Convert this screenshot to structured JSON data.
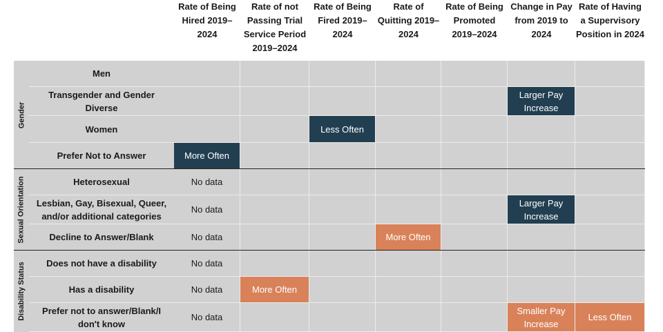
{
  "chart_data": {
    "type": "table",
    "columns": [
      "Rate of Being Hired 2019–2024",
      "Rate of not Passing Trial Service Period 2019–2024",
      "Rate of Being Fired 2019–2024",
      "Rate of Quitting 2019–2024",
      "Rate of Being Promoted 2019–2024",
      "Change in Pay from 2019 to 2024",
      "Rate of Having a Supervisory Position in 2024"
    ],
    "groups": [
      {
        "name": "Gender",
        "rows": [
          {
            "label": "Men",
            "cells": [
              "",
              "",
              "",
              "",
              "",
              "",
              ""
            ]
          },
          {
            "label": "Transgender and Gender Diverse",
            "cells": [
              "",
              "",
              "",
              "",
              "",
              "Larger Pay Increase",
              ""
            ]
          },
          {
            "label": "Women",
            "cells": [
              "",
              "",
              "Less Often",
              "",
              "",
              "",
              ""
            ]
          },
          {
            "label": "Prefer Not to Answer",
            "cells": [
              "More Often",
              "",
              "",
              "",
              "",
              "",
              ""
            ]
          }
        ]
      },
      {
        "name": "Sexual Orientation",
        "rows": [
          {
            "label": "Heterosexual",
            "cells": [
              "No data",
              "",
              "",
              "",
              "",
              "",
              ""
            ]
          },
          {
            "label": "Lesbian, Gay, Bisexual, Queer, and/or additional categories",
            "cells": [
              "No data",
              "",
              "",
              "",
              "",
              "Larger Pay Increase",
              ""
            ]
          },
          {
            "label": "Decline to Answer/Blank",
            "cells": [
              "No data",
              "",
              "",
              "More Often",
              "",
              "",
              ""
            ]
          }
        ]
      },
      {
        "name": "Disability Status",
        "rows": [
          {
            "label": "Does not have a disability",
            "cells": [
              "No data",
              "",
              "",
              "",
              "",
              "",
              ""
            ]
          },
          {
            "label": "Has a disability",
            "cells": [
              "No data",
              "More Often",
              "",
              "",
              "",
              "",
              ""
            ]
          },
          {
            "label": "Prefer not to answer/Blank/I don't know",
            "cells": [
              "No data",
              "",
              "",
              "",
              "",
              "Smaller Pay Increase",
              "Less Often"
            ]
          }
        ]
      }
    ],
    "colors": {
      "higher_or_larger": "#223f52",
      "lower_or_smaller": "#d9825a",
      "orange_values": [
        "Smaller Pay Increase"
      ],
      "cell_background": "#d1d1d1"
    }
  }
}
